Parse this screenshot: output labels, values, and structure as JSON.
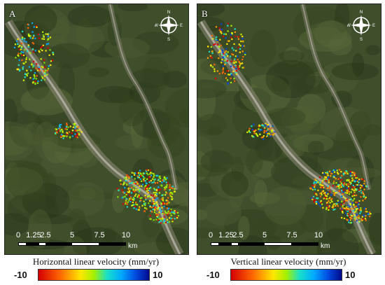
{
  "panels": [
    {
      "label": "A",
      "legend_title": "Horizontal linear velocity (mm/yr)",
      "colors": [
        "#ffe600",
        "#a6f000",
        "#d8f000",
        "#19e0c8",
        "#00a9ff",
        "#ff6a00",
        "#e00000",
        "#7ee000"
      ]
    },
    {
      "label": "B",
      "legend_title": "Vertical linear velocity (mm/yr)",
      "colors": [
        "#ffe600",
        "#a6f000",
        "#ff9a00",
        "#19e0c8",
        "#ff6a00",
        "#e00000",
        "#d8f000",
        "#0049e0"
      ]
    }
  ],
  "compass": {
    "n": "N",
    "s": "S",
    "e": "E",
    "w": "W"
  },
  "scale": {
    "ticks": [
      "0",
      "1.25",
      "2.5",
      "5",
      "7.5",
      "10"
    ],
    "unit": "km"
  },
  "legend": {
    "min": "-10",
    "max": "10",
    "colors": [
      "#d50000",
      "#ff6a00",
      "#ffe600",
      "#a6f000",
      "#19e0c8",
      "#00a9ff",
      "#0049e0",
      "#020a8c"
    ]
  },
  "map_colors": {
    "terrain": "#3f4f2c",
    "valley": "#8e8a78",
    "river": "#b9b7ad"
  }
}
